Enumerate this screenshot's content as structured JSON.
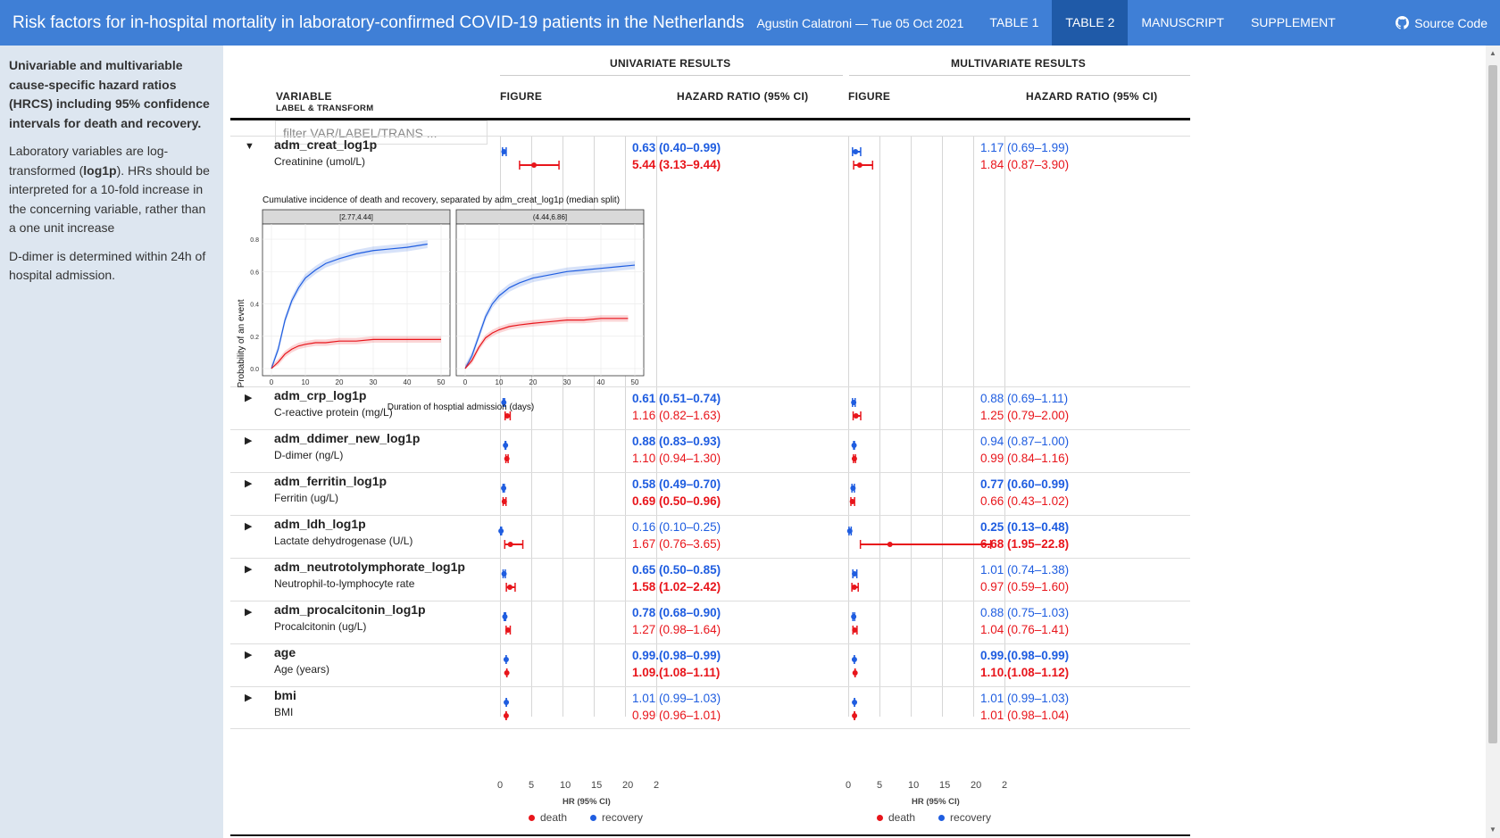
{
  "navbar": {
    "title": "Risk factors for in-hospital mortality in laboratory-confirmed COVID-19 patients in the Netherlands",
    "author": "Agustin Calatroni — Tue 05 Oct 2021",
    "links": [
      "TABLE 1",
      "TABLE 2",
      "MANUSCRIPT",
      "SUPPLEMENT"
    ],
    "active_link": "TABLE 2",
    "source_code": "Source Code"
  },
  "sidebar": {
    "heading": "Univariable and multivariable cause-specific hazard ratios (HRCS) including 95% confidence intervals for death and recovery.",
    "para1_pre": "Laboratory variables are log-transformed (",
    "para1_bold": "log1p",
    "para1_post": "). HRs should be interpreted for a 10-fold increase in the concerning variable, rather than a one unit increase",
    "para2": "D-dimer is determined within 24h of hospital admission."
  },
  "table": {
    "group_uni": "UNIVARIATE RESULTS",
    "group_multi": "MULTIVARIATE RESULTS",
    "col_variable": "VARIABLE",
    "col_variable_sub": "LABEL & TRANSFORM",
    "col_figure": "FIGURE",
    "col_hr": "HAZARD RATIO (95% CI)",
    "filter_placeholder": "filter VAR/LABEL/TRANS ...",
    "rows": [
      {
        "name": "adm_creat_log1p",
        "label": "Creatinine (umol/L)",
        "expanded": true,
        "uni": {
          "recovery": "0.63 (0.40–0.99)",
          "recovery_bold": true,
          "death": "5.44 (3.13–9.44)",
          "death_bold": true,
          "rec_ci": [
            0.4,
            0.63,
            0.99
          ],
          "death_ci": [
            3.13,
            5.44,
            9.44
          ]
        },
        "multi": {
          "recovery": "1.17 (0.69–1.99)",
          "recovery_bold": false,
          "death": "1.84 (0.87–3.90)",
          "death_bold": false,
          "rec_ci": [
            0.69,
            1.17,
            1.99
          ],
          "death_ci": [
            0.87,
            1.84,
            3.9
          ]
        }
      },
      {
        "name": "adm_crp_log1p",
        "label": "C-reactive protein (mg/L)",
        "expanded": false,
        "uni": {
          "recovery": "0.61 (0.51–0.74)",
          "recovery_bold": true,
          "death": "1.16 (0.82–1.63)",
          "death_bold": false,
          "rec_ci": [
            0.51,
            0.61,
            0.74
          ],
          "death_ci": [
            0.82,
            1.16,
            1.63
          ]
        },
        "multi": {
          "recovery": "0.88 (0.69–1.11)",
          "recovery_bold": false,
          "death": "1.25 (0.79–2.00)",
          "death_bold": false,
          "rec_ci": [
            0.69,
            0.88,
            1.11
          ],
          "death_ci": [
            0.79,
            1.25,
            2.0
          ]
        }
      },
      {
        "name": "adm_ddimer_new_log1p",
        "label": "D-dimer (ng/L)",
        "expanded": false,
        "uni": {
          "recovery": "0.88 (0.83–0.93)",
          "recovery_bold": true,
          "death": "1.10 (0.94–1.30)",
          "death_bold": false,
          "rec_ci": [
            0.83,
            0.88,
            0.93
          ],
          "death_ci": [
            0.94,
            1.1,
            1.3
          ]
        },
        "multi": {
          "recovery": "0.94 (0.87–1.00)",
          "recovery_bold": false,
          "death": "0.99 (0.84–1.16)",
          "death_bold": false,
          "rec_ci": [
            0.87,
            0.94,
            1.0
          ],
          "death_ci": [
            0.84,
            0.99,
            1.16
          ]
        }
      },
      {
        "name": "adm_ferritin_log1p",
        "label": "Ferritin (ug/L)",
        "expanded": false,
        "uni": {
          "recovery": "0.58 (0.49–0.70)",
          "recovery_bold": true,
          "death": "0.69 (0.50–0.96)",
          "death_bold": true,
          "rec_ci": [
            0.49,
            0.58,
            0.7
          ],
          "death_ci": [
            0.5,
            0.69,
            0.96
          ]
        },
        "multi": {
          "recovery": "0.77 (0.60–0.99)",
          "recovery_bold": true,
          "death": "0.66 (0.43–1.02)",
          "death_bold": false,
          "rec_ci": [
            0.6,
            0.77,
            0.99
          ],
          "death_ci": [
            0.43,
            0.66,
            1.02
          ]
        }
      },
      {
        "name": "adm_ldh_log1p",
        "label": "Lactate dehydrogenase (U/L)",
        "expanded": false,
        "uni": {
          "recovery": "0.16 (0.10–0.25)",
          "recovery_bold": false,
          "death": "1.67 (0.76–3.65)",
          "death_bold": false,
          "rec_ci": [
            0.1,
            0.16,
            0.25
          ],
          "death_ci": [
            0.76,
            1.67,
            3.65
          ]
        },
        "multi": {
          "recovery": "0.25 (0.13–0.48)",
          "recovery_bold": true,
          "death": "6.68 (1.95–22.8)",
          "death_bold": true,
          "rec_ci": [
            0.13,
            0.25,
            0.48
          ],
          "death_ci": [
            1.95,
            6.68,
            22.8
          ]
        }
      },
      {
        "name": "adm_neutrotolymphorate_log1p",
        "label": "Neutrophil-to-lymphocyte rate",
        "expanded": false,
        "uni": {
          "recovery": "0.65 (0.50–0.85)",
          "recovery_bold": true,
          "death": "1.58 (1.02–2.42)",
          "death_bold": true,
          "rec_ci": [
            0.5,
            0.65,
            0.85
          ],
          "death_ci": [
            1.02,
            1.58,
            2.42
          ]
        },
        "multi": {
          "recovery": "1.01 (0.74–1.38)",
          "recovery_bold": false,
          "death": "0.97 (0.59–1.60)",
          "death_bold": false,
          "rec_ci": [
            0.74,
            1.01,
            1.38
          ],
          "death_ci": [
            0.59,
            0.97,
            1.6
          ]
        }
      },
      {
        "name": "adm_procalcitonin_log1p",
        "label": "Procalcitonin (ug/L)",
        "expanded": false,
        "uni": {
          "recovery": "0.78 (0.68–0.90)",
          "recovery_bold": true,
          "death": "1.27 (0.98–1.64)",
          "death_bold": false,
          "rec_ci": [
            0.68,
            0.78,
            0.9
          ],
          "death_ci": [
            0.98,
            1.27,
            1.64
          ]
        },
        "multi": {
          "recovery": "0.88 (0.75–1.03)",
          "recovery_bold": false,
          "death": "1.04 (0.76–1.41)",
          "death_bold": false,
          "rec_ci": [
            0.75,
            0.88,
            1.03
          ],
          "death_ci": [
            0.76,
            1.04,
            1.41
          ]
        }
      },
      {
        "name": "age",
        "label": "Age (years)",
        "expanded": false,
        "uni": {
          "recovery": "0.99.(0.98–0.99)",
          "recovery_bold": true,
          "death": "1.09.(1.08–1.11)",
          "death_bold": true,
          "rec_ci": [
            0.98,
            0.99,
            0.99
          ],
          "death_ci": [
            1.08,
            1.09,
            1.11
          ]
        },
        "multi": {
          "recovery": "0.99.(0.98–0.99)",
          "recovery_bold": true,
          "death": "1.10.(1.08–1.12)",
          "death_bold": true,
          "rec_ci": [
            0.98,
            0.99,
            0.99
          ],
          "death_ci": [
            1.08,
            1.1,
            1.12
          ]
        }
      },
      {
        "name": "bmi",
        "label": "BMI",
        "expanded": false,
        "uni": {
          "recovery": "1.01 (0.99–1.03)",
          "recovery_bold": false,
          "death": "0.99 (0.96–1.01)",
          "death_bold": false,
          "rec_ci": [
            0.99,
            1.01,
            1.03
          ],
          "death_ci": [
            0.96,
            0.99,
            1.01
          ]
        },
        "multi": {
          "recovery": "1.01 (0.99–1.03)",
          "recovery_bold": false,
          "death": "1.01 (0.98–1.04)",
          "death_bold": false,
          "rec_ci": [
            0.99,
            1.01,
            1.03
          ],
          "death_ci": [
            0.98,
            1.01,
            1.04
          ]
        }
      }
    ],
    "axis_ticks": [
      "0",
      "5",
      "10",
      "15",
      "20",
      "2"
    ],
    "axis_title": "HR (95% CI)",
    "legend_death": "death",
    "legend_recovery": "recovery"
  },
  "colors": {
    "death": "#e8151b",
    "recovery": "#1f5de0",
    "navbar": "#3f7fd6",
    "active": "#1f5aa8"
  },
  "chart_data": {
    "type": "line",
    "title": "Cumulative incidence of death and recovery, separated by adm_creat_log1p (median split)",
    "xlabel": "Duration of hosptial admission (days)",
    "ylabel": "Probability of an event",
    "xlim": [
      0,
      50
    ],
    "ylim": [
      0,
      0.85
    ],
    "x_ticks": [
      "0",
      "10",
      "20",
      "30",
      "40",
      "50"
    ],
    "y_ticks": [
      "0.0",
      "0.2",
      "0.4",
      "0.6",
      "0.8"
    ],
    "panels": [
      {
        "strip": "[2.77,4.44]",
        "series": [
          {
            "name": "recovery",
            "x": [
              0,
              2,
              4,
              6,
              8,
              10,
              13,
              16,
              20,
              25,
              30,
              35,
              40,
              46
            ],
            "y": [
              0,
              0.12,
              0.3,
              0.42,
              0.5,
              0.56,
              0.61,
              0.65,
              0.68,
              0.71,
              0.73,
              0.74,
              0.75,
              0.77
            ]
          },
          {
            "name": "death",
            "x": [
              0,
              2,
              4,
              6,
              8,
              10,
              13,
              16,
              20,
              25,
              30,
              35,
              40,
              50
            ],
            "y": [
              0,
              0.04,
              0.09,
              0.12,
              0.14,
              0.15,
              0.16,
              0.16,
              0.17,
              0.17,
              0.18,
              0.18,
              0.18,
              0.18
            ]
          }
        ]
      },
      {
        "strip": "(4.44,6.86]",
        "series": [
          {
            "name": "recovery",
            "x": [
              0,
              2,
              4,
              6,
              8,
              10,
              13,
              16,
              20,
              25,
              30,
              35,
              40,
              45,
              50
            ],
            "y": [
              0,
              0.08,
              0.2,
              0.32,
              0.4,
              0.45,
              0.5,
              0.53,
              0.56,
              0.58,
              0.6,
              0.61,
              0.62,
              0.63,
              0.64
            ]
          },
          {
            "name": "death",
            "x": [
              0,
              2,
              4,
              6,
              8,
              10,
              13,
              16,
              20,
              25,
              30,
              35,
              40,
              45,
              48
            ],
            "y": [
              0,
              0.05,
              0.13,
              0.19,
              0.22,
              0.24,
              0.26,
              0.27,
              0.28,
              0.29,
              0.3,
              0.3,
              0.31,
              0.31,
              0.31
            ]
          }
        ]
      }
    ]
  }
}
